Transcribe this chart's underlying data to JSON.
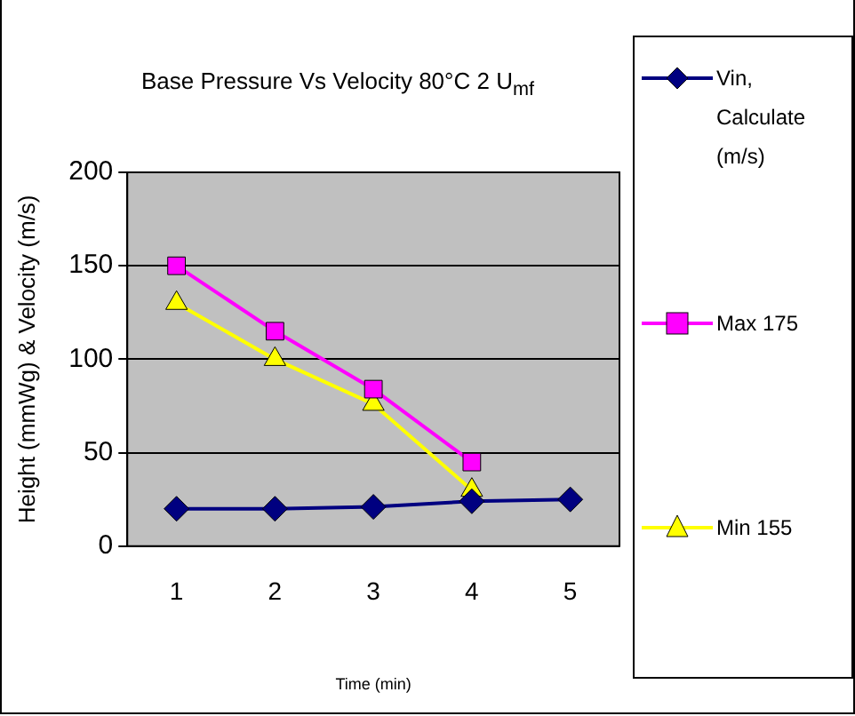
{
  "chart_data": {
    "type": "line",
    "title": "Base Pressure Vs Velocity 80°C 2 U$_{mf}$",
    "xlabel": "Time (min)",
    "ylabel": "Height (mmWg) & Velocity (m/s)",
    "categories": [
      "1",
      "2",
      "3",
      "4",
      "5"
    ],
    "series": [
      {
        "name": "Vin, Calculate (m/s)",
        "color": "#000080",
        "marker": "diamond",
        "values": [
          20,
          20,
          21,
          24,
          25
        ]
      },
      {
        "name": "Max 175",
        "color": "#ff00ff",
        "marker": "square",
        "values": [
          150,
          115,
          84,
          45,
          null
        ]
      },
      {
        "name": "Min 155",
        "color": "#ffff00",
        "marker": "triangle",
        "values": [
          130,
          100,
          76,
          30,
          null
        ]
      }
    ],
    "ylim": [
      0,
      200
    ],
    "yticks": [
      0,
      50,
      100,
      150,
      200
    ],
    "grid": "y",
    "legend": "right"
  }
}
